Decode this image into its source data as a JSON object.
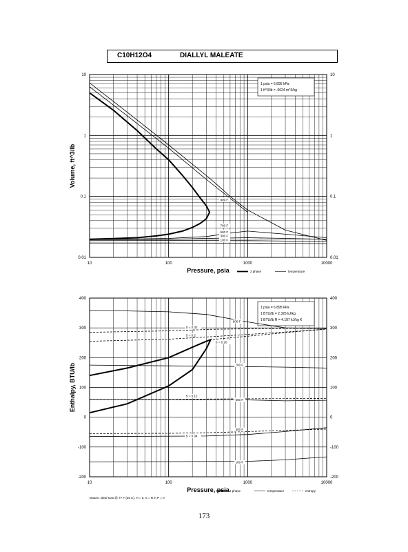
{
  "header": {
    "formula": "C10H12O4",
    "name": "DIALLYL MALEATE"
  },
  "page_number": "173",
  "chart_data": [
    {
      "type": "line",
      "title": "",
      "xlabel": "Pressure,  psia",
      "ylabel": "Volume, ft^3/lb",
      "x_scale": "log",
      "y_scale": "log",
      "xlim": [
        10,
        10000
      ],
      "ylim": [
        0.01,
        10
      ],
      "grid": true,
      "x_tick_labels": [
        "10",
        "100",
        "1000",
        "10000"
      ],
      "y_tick_labels_left": [
        "10",
        "1",
        "0.1",
        "0.01"
      ],
      "y_tick_labels_right": [
        "10",
        "1",
        "0.1",
        "0.01"
      ],
      "conversion_note": [
        "1 psia = 6.895 kPa",
        "1 ft^3/lb = .0624 m^3/kg"
      ],
      "legend": [
        {
          "label": "2 phase",
          "style": "thick"
        },
        {
          "label": "temperature",
          "style": "thin"
        }
      ],
      "legend_placement": "bottom-right",
      "series": [
        {
          "name": "2 phase",
          "x": [
            10,
            20,
            40,
            70,
            100,
            150,
            200,
            250,
            300,
            330,
            300,
            250,
            200,
            150,
            100,
            70,
            40,
            20,
            10
          ],
          "y": [
            5,
            2.6,
            1.2,
            0.6,
            0.4,
            0.22,
            0.14,
            0.095,
            0.07,
            0.055,
            0.043,
            0.036,
            0.031,
            0.027,
            0.024,
            0.0225,
            0.021,
            0.0203,
            0.0198
          ]
        },
        {
          "name": "600 F",
          "x": [
            10,
            30,
            100,
            300,
            400,
            600,
            1000,
            3000,
            10000
          ],
          "y": [
            7.3,
            2.4,
            0.7,
            0.22,
            0.16,
            0.1,
            0.06,
            0.028,
            0.019
          ]
        },
        {
          "name": "",
          "x": [
            10,
            30,
            100,
            300,
            1000
          ],
          "y": [
            6.3,
            2.1,
            0.62,
            0.19,
            0.055
          ]
        },
        {
          "name": "700 F",
          "x": [
            10,
            100,
            300,
            600,
            1000,
            3000,
            10000
          ],
          "y": [
            0.0195,
            0.0205,
            0.022,
            0.025,
            0.027,
            0.024,
            0.021
          ]
        },
        {
          "name": "500 F",
          "x": [
            10,
            100,
            300,
            1000,
            3000,
            10000
          ],
          "y": [
            0.0195,
            0.0198,
            0.0205,
            0.021,
            0.0205,
            0.0198
          ]
        },
        {
          "name": "300 F",
          "x": [
            10,
            100,
            1000,
            10000
          ],
          "y": [
            0.0188,
            0.0189,
            0.0188,
            0.0182
          ]
        },
        {
          "name": "100 F",
          "x": [
            10,
            100,
            1000,
            10000
          ],
          "y": [
            0.0172,
            0.0172,
            0.0171,
            0.0168
          ]
        }
      ],
      "curve_labels": [
        {
          "text": "600 F",
          "x": 450,
          "y": 0.085
        },
        {
          "text": "700 F",
          "x": 450,
          "y": 0.032
        },
        {
          "text": "500 F",
          "x": 450,
          "y": 0.025
        },
        {
          "text": "300 F",
          "x": 450,
          "y": 0.0215
        },
        {
          "text": "100 F",
          "x": 450,
          "y": 0.0185
        }
      ]
    },
    {
      "type": "line",
      "title": "",
      "xlabel": "Pressure,  psia",
      "ylabel": "Enthalpy, BTU/lb",
      "x_scale": "log",
      "y_scale": "linear",
      "xlim": [
        10,
        10000
      ],
      "ylim": [
        -200,
        400
      ],
      "grid": true,
      "x_tick_labels": [
        "10",
        "100",
        "1000",
        "10000"
      ],
      "y_tick_labels_left": [
        "400",
        "300",
        "200",
        "100",
        "0",
        "-100",
        "-200"
      ],
      "y_tick_labels_right": [
        "400",
        "300",
        "200",
        "100",
        "0",
        "-100",
        "-200"
      ],
      "conversion_note": [
        "1 psia = 6.895 kPa",
        "1 BTU/lb = 2.326 kJ/kg",
        "1 BTU/lb R = 4.187 kJ/kg K"
      ],
      "legend": [
        {
          "label": "2 phase",
          "style": "thick"
        },
        {
          "label": "temperature",
          "style": "thin"
        },
        {
          "label": "entropy",
          "style": "dashed"
        }
      ],
      "legend_placement": "bottom-right",
      "footnote": "Datum: Ideal Gas @ 77 F (25 C),  H = 0,  S = R ln P = 0",
      "series": [
        {
          "name": "2 phase",
          "x": [
            10,
            30,
            100,
            200,
            300,
            340,
            300,
            200,
            100,
            30,
            10
          ],
          "y": [
            140,
            165,
            200,
            235,
            255,
            260,
            230,
            160,
            105,
            45,
            15
          ]
        },
        {
          "name": "600 F",
          "x": [
            10,
            30,
            100,
            300,
            1000,
            3000,
            10000
          ],
          "y": [
            358,
            357,
            354,
            345,
            320,
            300,
            298
          ]
        },
        {
          "name": "700 F",
          "x": [
            10,
            1000,
            3000,
            10000
          ],
          "y": [
            175,
            170,
            168,
            165
          ]
        },
        {
          "name": "500 F",
          "x": [
            10,
            1000,
            3000,
            10000
          ],
          "y": [
            60,
            58,
            55,
            57
          ]
        },
        {
          "name": "300 F",
          "x": [
            10,
            300,
            1000,
            3000,
            10000
          ],
          "y": [
            -65,
            -63,
            -58,
            -48,
            -35
          ]
        },
        {
          "name": "100 F",
          "x": [
            10,
            1000,
            3000,
            10000
          ],
          "y": [
            -150,
            -148,
            -143,
            -133
          ]
        },
        {
          "name": "S = 0.32",
          "x": [
            10,
            100,
            330,
            1000,
            3000,
            10000
          ],
          "y": [
            285,
            290,
            295,
            297,
            298,
            298
          ],
          "dashed": true
        },
        {
          "name": "S = 0.2",
          "x": [
            10,
            100,
            330,
            1000,
            3000,
            10000
          ],
          "y": [
            255,
            262,
            270,
            278,
            286,
            296
          ],
          "dashed": true
        },
        {
          "name": "S = 0.20",
          "x": [
            330,
            1000,
            3000,
            10000
          ],
          "y": [
            260,
            272,
            284,
            296
          ],
          "dashed": true
        },
        {
          "name": "S = 0.12",
          "x": [
            10,
            100,
            330,
            1000,
            10000
          ],
          "y": [
            60,
            60,
            61,
            62,
            63
          ],
          "dashed": true
        },
        {
          "name": "S = 0.04",
          "x": [
            10,
            100,
            330,
            1000,
            10000
          ],
          "y": [
            -55,
            -54,
            -52,
            -48,
            -40
          ],
          "dashed": true
        }
      ],
      "curve_labels": [
        {
          "text": "600 F",
          "x": 650,
          "y": 318
        },
        {
          "text": "S = 0.32",
          "x": 165,
          "y": 298
        },
        {
          "text": "S = 0.2",
          "x": 165,
          "y": 272
        },
        {
          "text": "S = 0.20",
          "x": 390,
          "y": 248
        },
        {
          "text": "700 F",
          "x": 700,
          "y": 172
        },
        {
          "text": "S = 0.12",
          "x": 165,
          "y": 68
        },
        {
          "text": "500 F",
          "x": 700,
          "y": 55
        },
        {
          "text": "300 F",
          "x": 700,
          "y": -45
        },
        {
          "text": "S = 0.04",
          "x": 165,
          "y": -67
        },
        {
          "text": "100 F",
          "x": 700,
          "y": -155
        }
      ]
    }
  ]
}
